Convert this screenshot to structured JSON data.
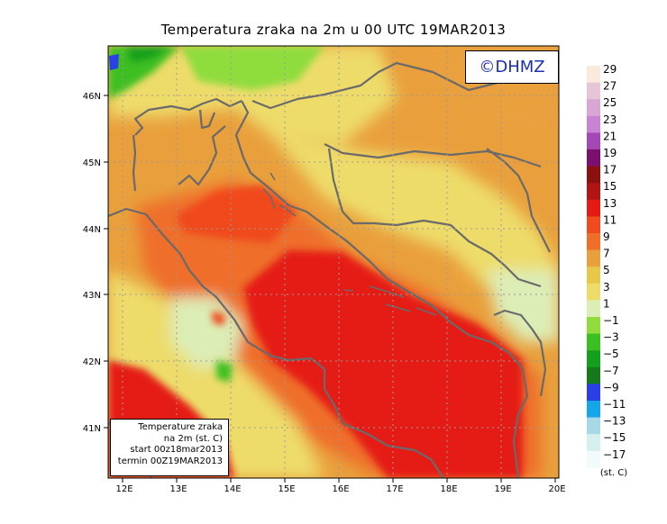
{
  "title": "Temperatura zraka na 2m u 00 UTC 19MAR2013",
  "copyright": "©DHMZ",
  "info_box": {
    "line1": "Temperature zraka",
    "line2": "na 2m (st. C)",
    "line3": "start 00z18mar2013",
    "line4": "termin 00Z19MAR2013"
  },
  "axes": {
    "lon_ticks": [
      "12E",
      "13E",
      "14E",
      "15E",
      "16E",
      "17E",
      "18E",
      "19E",
      "20E"
    ],
    "lat_ticks": [
      "46N",
      "45N",
      "44N",
      "43N",
      "42N",
      "41N"
    ]
  },
  "colorbar": {
    "labels": [
      "29",
      "27",
      "25",
      "23",
      "21",
      "19",
      "17",
      "15",
      "13",
      "11",
      "9",
      "7",
      "5",
      "3",
      "1",
      "−1",
      "−3",
      "−5",
      "−7",
      "−9",
      "−11",
      "−13",
      "−15",
      "−17"
    ],
    "unit": "(st. C)",
    "colors": [
      "#fbe9dc",
      "#e6c6d6",
      "#d9a6d3",
      "#c884d2",
      "#a448b6",
      "#7a0f6e",
      "#8b1010",
      "#b11414",
      "#e51a14",
      "#f04a1f",
      "#ee6e2a",
      "#e9a03c",
      "#e8c84a",
      "#eddc6a",
      "#dcedb6",
      "#8fdc3c",
      "#3cbf23",
      "#14a01c",
      "#167a1c",
      "#2a40e6",
      "#16a5e8",
      "#a6d8e6",
      "#d6f0f0",
      "#f2fbfb"
    ]
  }
}
